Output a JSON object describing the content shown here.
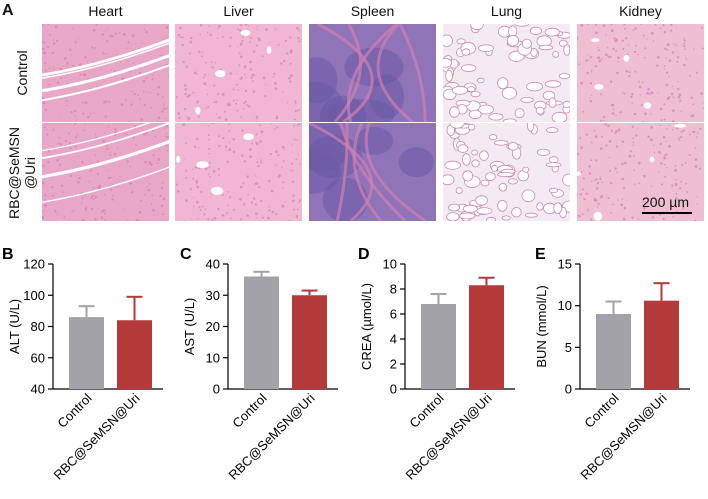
{
  "histology": {
    "panel_letter": "A",
    "organs": [
      "Heart",
      "Liver",
      "Spleen",
      "Lung",
      "Kidney"
    ],
    "rows": [
      {
        "label_lines": [
          "Control"
        ]
      },
      {
        "label_lines": [
          "RBC@SeMSN",
          "@Uri"
        ]
      }
    ],
    "scale_bar_label": "200 µm",
    "tile_colors": {
      "Heart": "#e9a7c8",
      "Liver": "#f1b6d3",
      "Spleen": "#8f74b8",
      "Lung": "#f4eaf3",
      "Kidney": "#efbdd4"
    }
  },
  "chart_data": [
    {
      "panel_letter": "B",
      "type": "bar",
      "categories": [
        "Control",
        "RBC@SeMSN@Uri"
      ],
      "values": [
        86,
        84
      ],
      "errors": [
        7,
        15
      ],
      "ylabel": "ALT (U/L)",
      "ylim": [
        40,
        120
      ],
      "yticks": [
        40,
        60,
        80,
        100,
        120
      ],
      "colors": [
        "#a3a2a8",
        "#b33a3a"
      ]
    },
    {
      "panel_letter": "C",
      "type": "bar",
      "categories": [
        "Control",
        "RBC@SeMSN@Uri"
      ],
      "values": [
        36,
        30
      ],
      "errors": [
        1.5,
        1.5
      ],
      "ylabel": "AST (U/L)",
      "ylim": [
        0,
        40
      ],
      "yticks": [
        0,
        10,
        20,
        30,
        40
      ],
      "colors": [
        "#a3a2a8",
        "#b33a3a"
      ]
    },
    {
      "panel_letter": "D",
      "type": "bar",
      "categories": [
        "Control",
        "RBC@SeMSN@Uri"
      ],
      "values": [
        6.8,
        8.3
      ],
      "errors": [
        0.8,
        0.6
      ],
      "ylabel": "CREA (µmol/L)",
      "ylim": [
        0,
        10
      ],
      "yticks": [
        0,
        2,
        4,
        6,
        8,
        10
      ],
      "colors": [
        "#a3a2a8",
        "#b33a3a"
      ]
    },
    {
      "panel_letter": "E",
      "type": "bar",
      "categories": [
        "Control",
        "RBC@SeMSN@Uri"
      ],
      "values": [
        9,
        10.6
      ],
      "errors": [
        1.5,
        2.1
      ],
      "ylabel": "BUN (mmol/L)",
      "ylim": [
        0,
        15
      ],
      "yticks": [
        0,
        5,
        10,
        15
      ],
      "colors": [
        "#a3a2a8",
        "#b33a3a"
      ]
    }
  ]
}
